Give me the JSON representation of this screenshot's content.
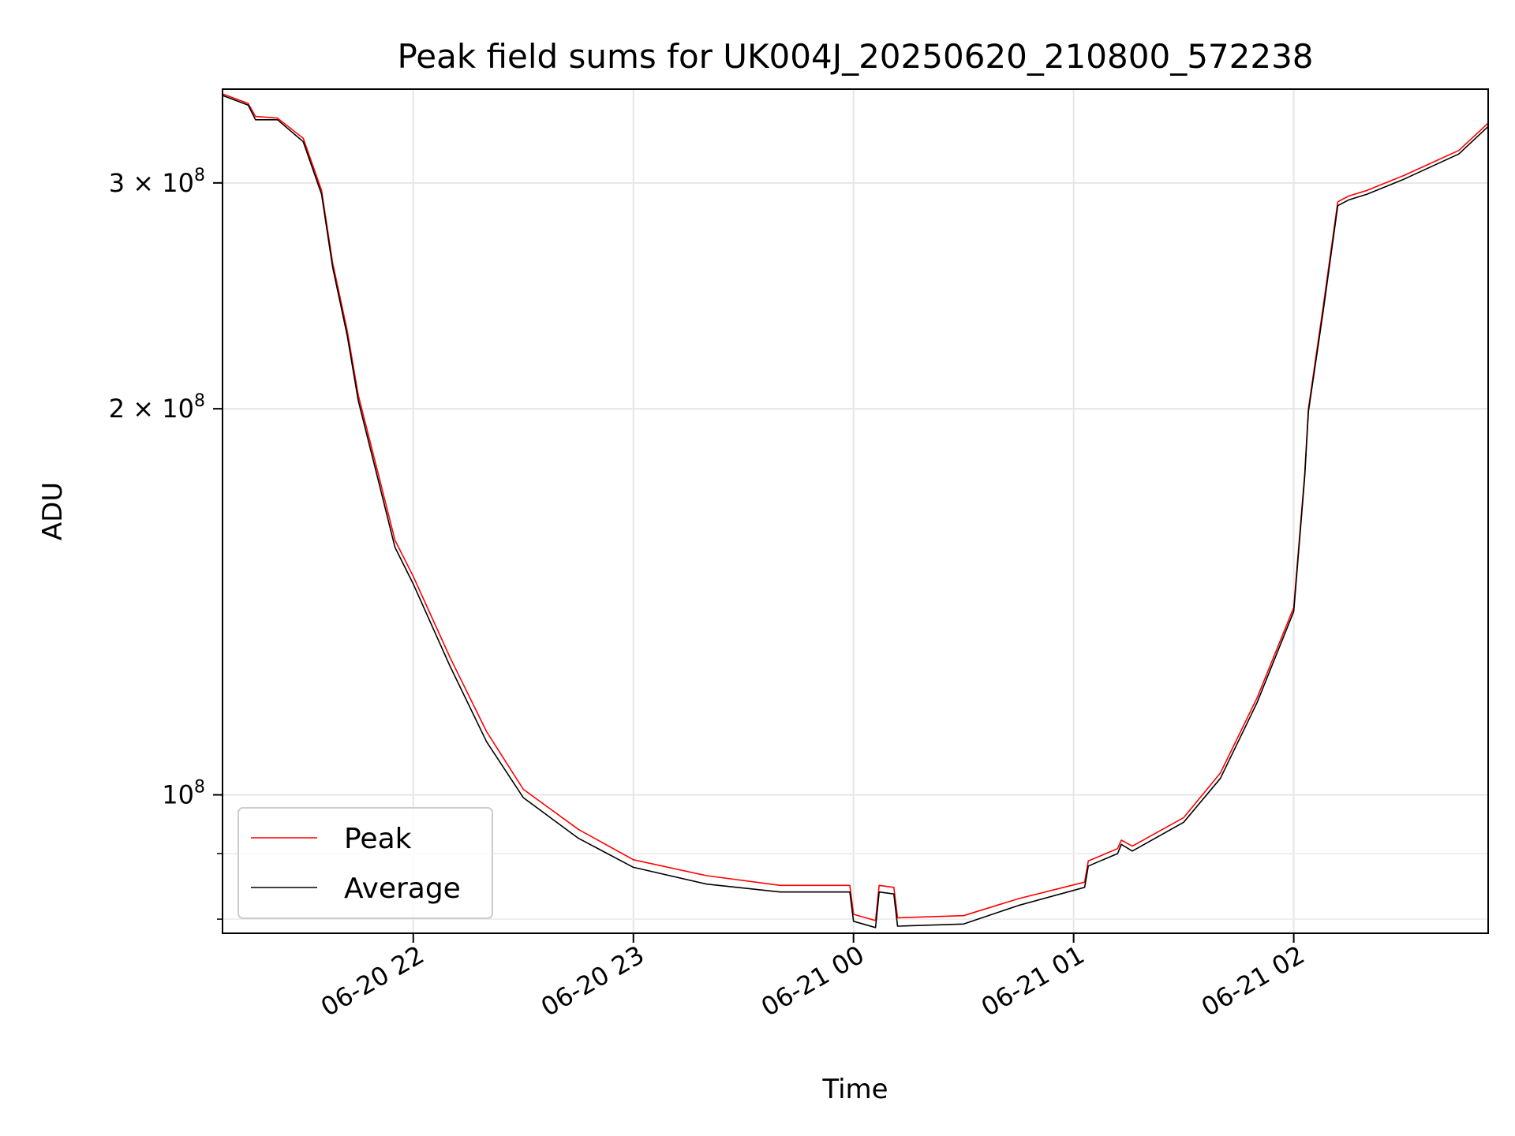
{
  "chart_data": {
    "type": "line",
    "title": "Peak field sums for UK004J_20250620_210800_572238",
    "xlabel": "Time",
    "ylabel": "ADU",
    "yscale": "log",
    "grid": true,
    "legend_position": "lower-left",
    "xlim": [
      "2025-06-20 21:08",
      "2025-06-21 02:53"
    ],
    "ylim": [
      78000000,
      355000000
    ],
    "x_ticks": [
      {
        "value": "2025-06-20 22:00",
        "label": "06-20 22"
      },
      {
        "value": "2025-06-20 23:00",
        "label": "06-20 23"
      },
      {
        "value": "2025-06-21 00:00",
        "label": "06-21 00"
      },
      {
        "value": "2025-06-21 01:00",
        "label": "06-21 01"
      },
      {
        "value": "2025-06-21 02:00",
        "label": "06-21 02"
      }
    ],
    "y_major_ticks": [
      {
        "value": 100000000,
        "base": "10",
        "exp": "8"
      },
      {
        "value": 200000000,
        "base": "2 × 10",
        "exp": "8"
      },
      {
        "value": 300000000,
        "base": "3 × 10",
        "exp": "8"
      }
    ],
    "y_minor_ticks": [
      80000000,
      90000000
    ],
    "series": [
      {
        "name": "Peak",
        "color": "#ff0000",
        "x": [
          "2025-06-20 21:08",
          "2025-06-20 21:15",
          "2025-06-20 21:17",
          "2025-06-20 21:23",
          "2025-06-20 21:30",
          "2025-06-20 21:35",
          "2025-06-20 21:38",
          "2025-06-20 21:42",
          "2025-06-20 21:45",
          "2025-06-20 21:50",
          "2025-06-20 21:55",
          "2025-06-20 22:00",
          "2025-06-20 22:10",
          "2025-06-20 22:20",
          "2025-06-20 22:30",
          "2025-06-20 22:45",
          "2025-06-20 23:00",
          "2025-06-20 23:20",
          "2025-06-20 23:40",
          "2025-06-20 23:59",
          "2025-06-21 00:00",
          "2025-06-21 00:06",
          "2025-06-21 00:07",
          "2025-06-21 00:11",
          "2025-06-21 00:12",
          "2025-06-21 00:30",
          "2025-06-21 00:45",
          "2025-06-21 01:03",
          "2025-06-21 01:04",
          "2025-06-21 01:12",
          "2025-06-21 01:13",
          "2025-06-21 01:16",
          "2025-06-21 01:30",
          "2025-06-21 01:40",
          "2025-06-21 01:50",
          "2025-06-21 02:00",
          "2025-06-21 02:03",
          "2025-06-21 02:04",
          "2025-06-21 02:08",
          "2025-06-21 02:12",
          "2025-06-21 02:15",
          "2025-06-21 02:20",
          "2025-06-21 02:30",
          "2025-06-21 02:45",
          "2025-06-21 02:53"
        ],
        "values": [
          352000000,
          346000000,
          338000000,
          337000000,
          325000000,
          296000000,
          260000000,
          230000000,
          205000000,
          180000000,
          158000000,
          148000000,
          128000000,
          112000000,
          101000000,
          94000000,
          89000000,
          86500000,
          85000000,
          85000000,
          80700000,
          79800000,
          85000000,
          84700000,
          80200000,
          80500000,
          83000000,
          85500000,
          88800000,
          90800000,
          92200000,
          91200000,
          96000000,
          104000000,
          119000000,
          140000000,
          178000000,
          200000000,
          240000000,
          290000000,
          293000000,
          296000000,
          304000000,
          318000000,
          334000000
        ]
      },
      {
        "name": "Average",
        "color": "#000000",
        "x": [
          "2025-06-20 21:08",
          "2025-06-20 21:15",
          "2025-06-20 21:17",
          "2025-06-20 21:23",
          "2025-06-20 21:30",
          "2025-06-20 21:35",
          "2025-06-20 21:38",
          "2025-06-20 21:42",
          "2025-06-20 21:45",
          "2025-06-20 21:50",
          "2025-06-20 21:55",
          "2025-06-20 22:00",
          "2025-06-20 22:10",
          "2025-06-20 22:20",
          "2025-06-20 22:30",
          "2025-06-20 22:45",
          "2025-06-20 23:00",
          "2025-06-20 23:20",
          "2025-06-20 23:40",
          "2025-06-20 23:59",
          "2025-06-21 00:00",
          "2025-06-21 00:06",
          "2025-06-21 00:07",
          "2025-06-21 00:11",
          "2025-06-21 00:12",
          "2025-06-21 00:30",
          "2025-06-21 00:45",
          "2025-06-21 01:03",
          "2025-06-21 01:04",
          "2025-06-21 01:12",
          "2025-06-21 01:13",
          "2025-06-21 01:16",
          "2025-06-21 01:30",
          "2025-06-21 01:40",
          "2025-06-21 01:50",
          "2025-06-21 02:00",
          "2025-06-21 02:03",
          "2025-06-21 02:04",
          "2025-06-21 02:08",
          "2025-06-21 02:12",
          "2025-06-21 02:15",
          "2025-06-21 02:20",
          "2025-06-21 02:30",
          "2025-06-21 02:45",
          "2025-06-21 02:53"
        ],
        "values": [
          351000000,
          345000000,
          336000000,
          336000000,
          323000000,
          294000000,
          258000000,
          228000000,
          203000000,
          178000000,
          156000000,
          146000000,
          126000000,
          110000000,
          99500000,
          92500000,
          87800000,
          85200000,
          84000000,
          84000000,
          79700000,
          78800000,
          84000000,
          83700000,
          79000000,
          79300000,
          82000000,
          84700000,
          88000000,
          90000000,
          91500000,
          90400000,
          95200000,
          103000000,
          118000000,
          139000000,
          177000000,
          199000000,
          238000000,
          288000000,
          291000000,
          294000000,
          302000000,
          316000000,
          332000000
        ]
      }
    ]
  }
}
